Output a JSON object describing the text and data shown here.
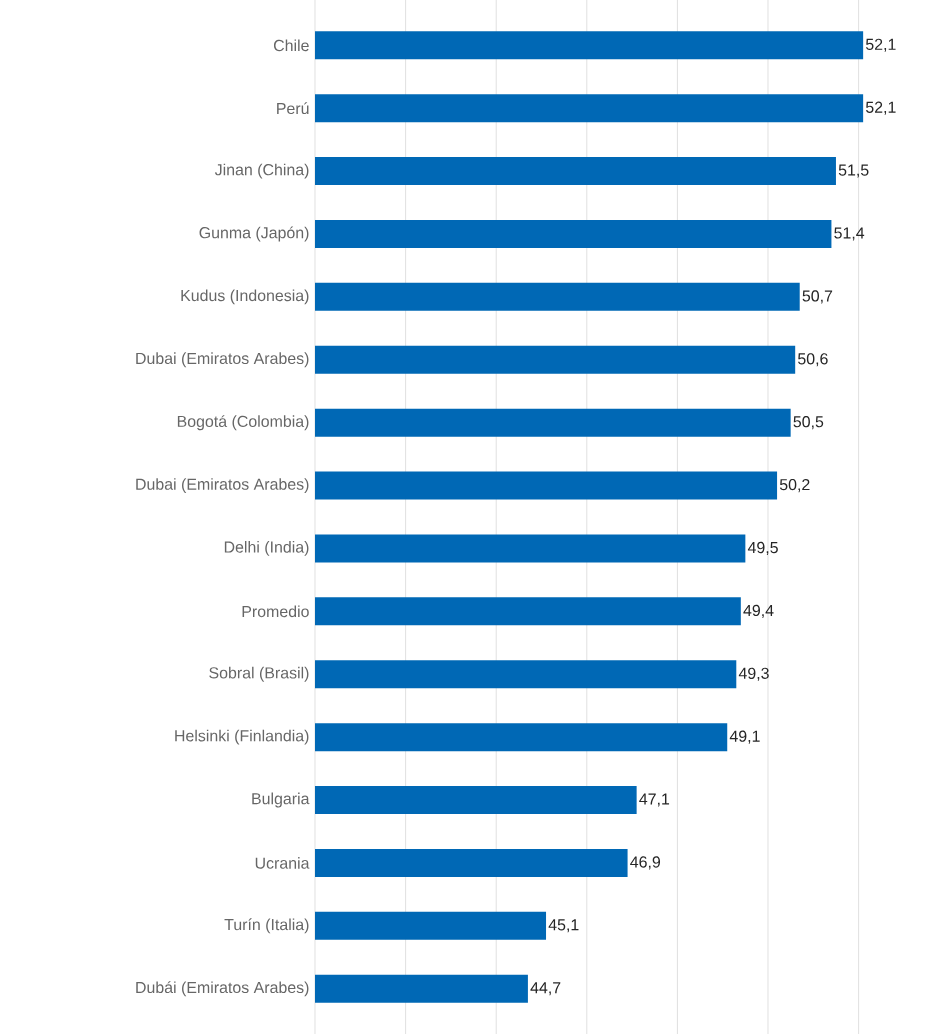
{
  "chart_data": {
    "type": "bar",
    "orientation": "horizontal",
    "categories": [
      "Chile",
      "Perú",
      "Jinan (China)",
      "Gunma (Japón)",
      "Kudus (Indonesia)",
      "Dubai (Emiratos Arabes)",
      "Bogotá (Colombia)",
      "Dubai (Emiratos Arabes)",
      "Delhi (India)",
      "Promedio",
      "Sobral (Brasil)",
      "Helsinki (Finlandia)",
      "Bulgaria",
      "Ucrania",
      "Turín (Italia)",
      "Dubái (Emiratos Arabes)"
    ],
    "values": [
      52.1,
      52.1,
      51.5,
      51.4,
      50.7,
      50.6,
      50.5,
      50.2,
      49.5,
      49.4,
      49.3,
      49.1,
      47.1,
      46.9,
      45.1,
      44.7
    ],
    "value_labels": [
      "52,1",
      "52,1",
      "51,5",
      "51,4",
      "50,7",
      "50,6",
      "50,5",
      "50,2",
      "49,5",
      "49,4",
      "49,3",
      "49,1",
      "47,1",
      "46,9",
      "45,1",
      "44,7"
    ],
    "color": "#0068b5",
    "xlim": [
      40,
      52.1
    ],
    "xticks": [
      {
        "value": 40,
        "label": null
      },
      {
        "value": 42,
        "label": null
      },
      {
        "value": 44,
        "label": null
      },
      {
        "value": 46,
        "label": null
      },
      {
        "value": 48,
        "label": null
      },
      {
        "value": 50,
        "label": null
      },
      {
        "value": 52,
        "label": null
      }
    ],
    "grid": "x",
    "tick_labels": "y"
  }
}
